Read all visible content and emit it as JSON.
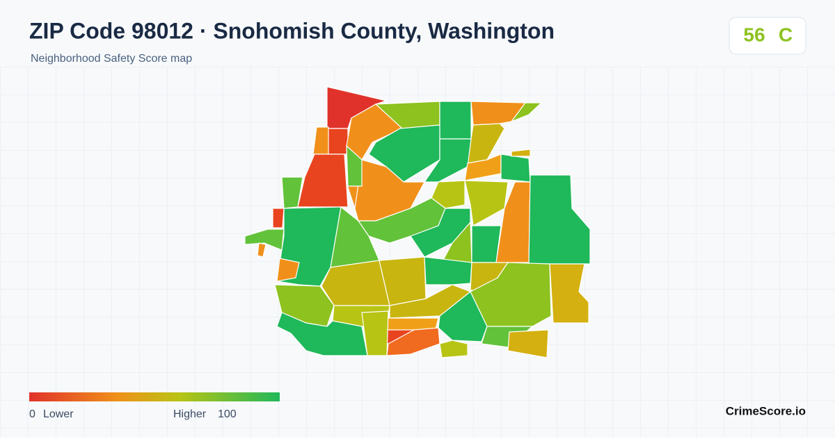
{
  "header": {
    "title": "ZIP Code 98012 · Snohomish County, Washington",
    "subtitle": "Neighborhood Safety Score map"
  },
  "score": {
    "value": 56,
    "grade": "C"
  },
  "legend": {
    "min": 0,
    "min_label": "Lower",
    "max_label": "Higher",
    "max": 100
  },
  "footer": {
    "brand": "CrimeScore.io"
  }
}
